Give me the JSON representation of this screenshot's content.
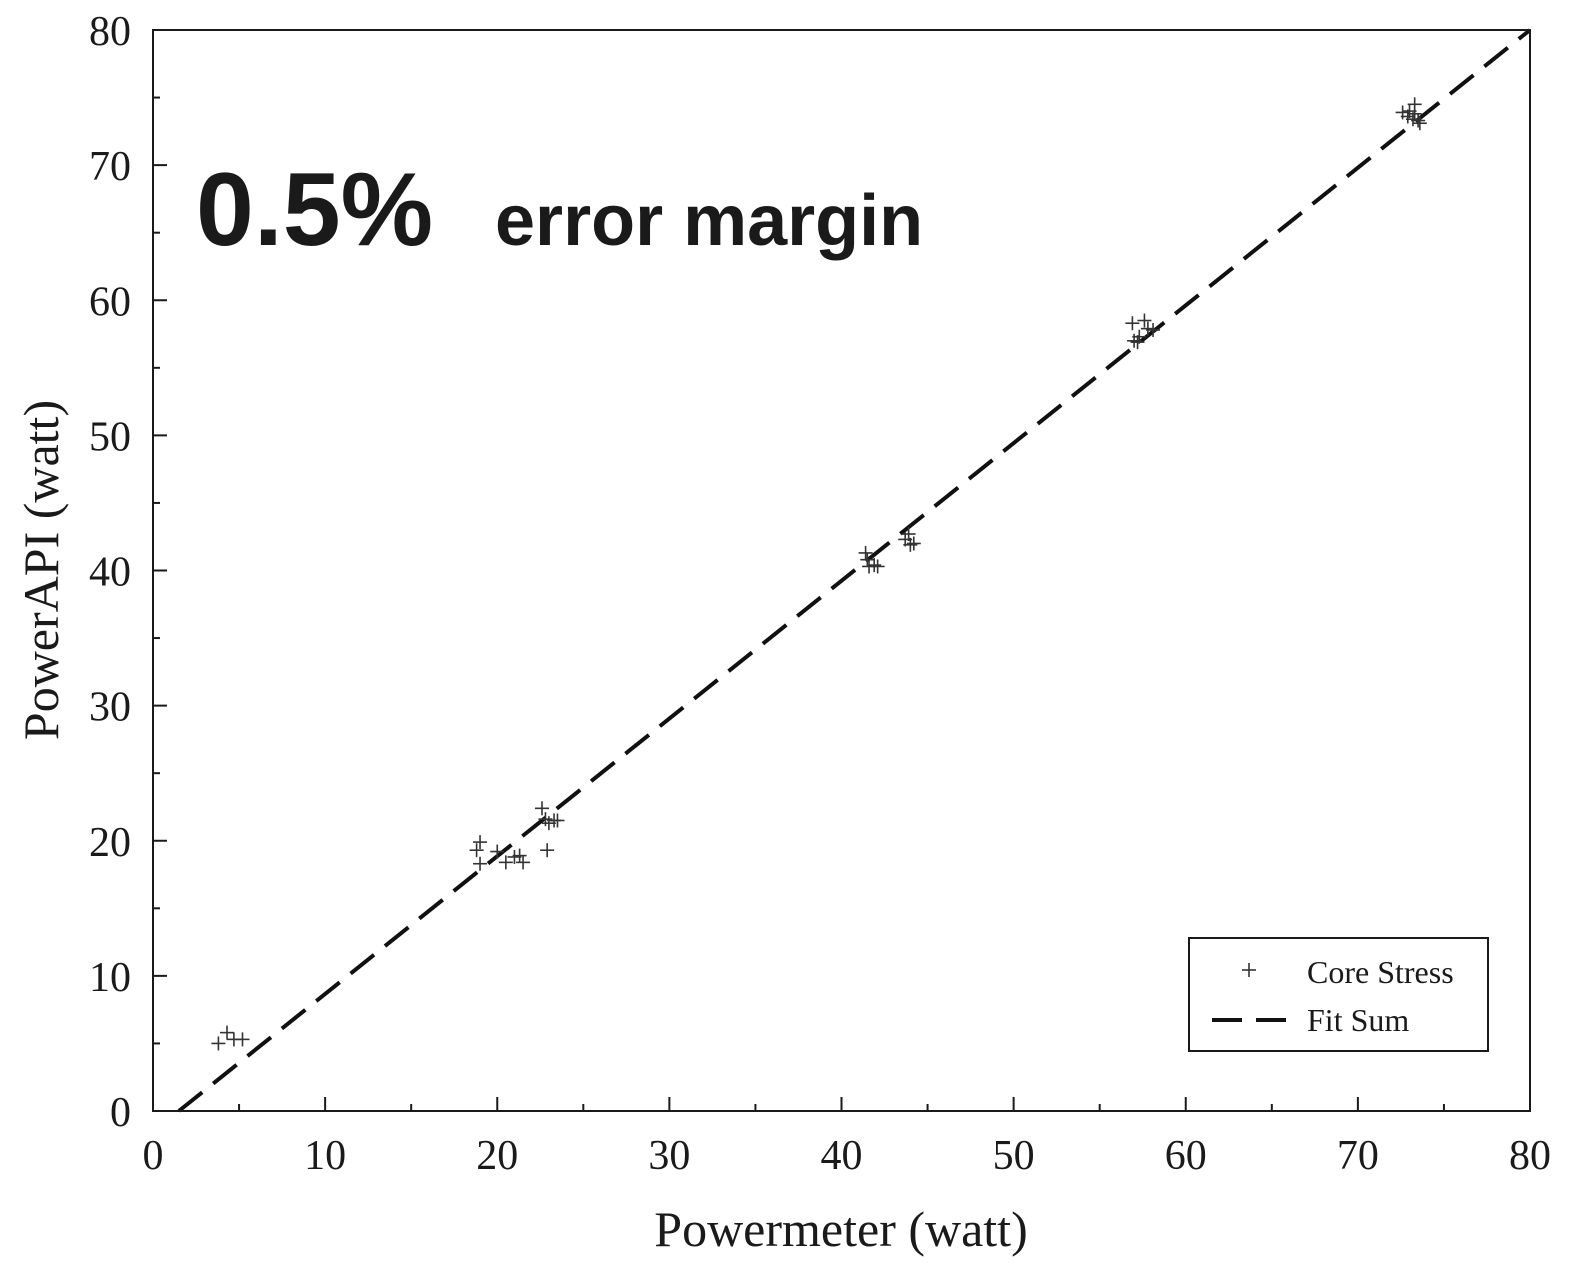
{
  "chart_data": {
    "type": "scatter",
    "title": "",
    "xlabel": "Powermeter (watt)",
    "ylabel": "PowerAPI (watt)",
    "xlim": [
      0,
      80
    ],
    "ylim": [
      0,
      80
    ],
    "xticks": [
      "0",
      "10",
      "20",
      "30",
      "40",
      "50",
      "60",
      "70",
      "80"
    ],
    "yticks": [
      "0",
      "10",
      "20",
      "30",
      "40",
      "50",
      "60",
      "70",
      "80"
    ],
    "grid": false,
    "legend_position": "bottom-right",
    "annotation": {
      "value": "0.5%",
      "text": "error margin",
      "color": "#2e9a2e"
    },
    "series": [
      {
        "name": "Core Stress",
        "marker": "plus",
        "color": "#333333",
        "points": [
          [
            3.8,
            5.0
          ],
          [
            4.3,
            5.8
          ],
          [
            4.7,
            5.3
          ],
          [
            5.2,
            5.3
          ],
          [
            18.8,
            19.3
          ],
          [
            19.0,
            19.9
          ],
          [
            19.0,
            18.3
          ],
          [
            20.0,
            19.2
          ],
          [
            20.5,
            18.4
          ],
          [
            21.0,
            18.8
          ],
          [
            21.3,
            18.9
          ],
          [
            21.5,
            18.4
          ],
          [
            22.6,
            22.4
          ],
          [
            22.8,
            21.6
          ],
          [
            23.0,
            21.3
          ],
          [
            23.3,
            21.5
          ],
          [
            23.5,
            21.5
          ],
          [
            22.9,
            19.3
          ],
          [
            41.4,
            41.3
          ],
          [
            41.6,
            40.3
          ],
          [
            41.9,
            40.4
          ],
          [
            42.1,
            40.3
          ],
          [
            41.5,
            40.8
          ],
          [
            43.7,
            42.3
          ],
          [
            43.9,
            42.7
          ],
          [
            44.0,
            41.9
          ],
          [
            44.2,
            42.0
          ],
          [
            56.9,
            58.3
          ],
          [
            57.0,
            57.0
          ],
          [
            57.3,
            57.3
          ],
          [
            57.6,
            58.5
          ],
          [
            57.8,
            57.9
          ],
          [
            58.1,
            57.8
          ],
          [
            57.2,
            56.9
          ],
          [
            72.6,
            73.9
          ],
          [
            72.9,
            73.6
          ],
          [
            73.2,
            73.4
          ],
          [
            73.3,
            74.5
          ],
          [
            73.5,
            73.3
          ],
          [
            73.6,
            73.1
          ],
          [
            73.3,
            73.8
          ],
          [
            73.0,
            74.0
          ]
        ]
      },
      {
        "name": "Fit Sum",
        "style": "dashed",
        "color": "#111111",
        "fit_line": [
          [
            1.5,
            0
          ],
          [
            80,
            80
          ]
        ]
      }
    ]
  }
}
